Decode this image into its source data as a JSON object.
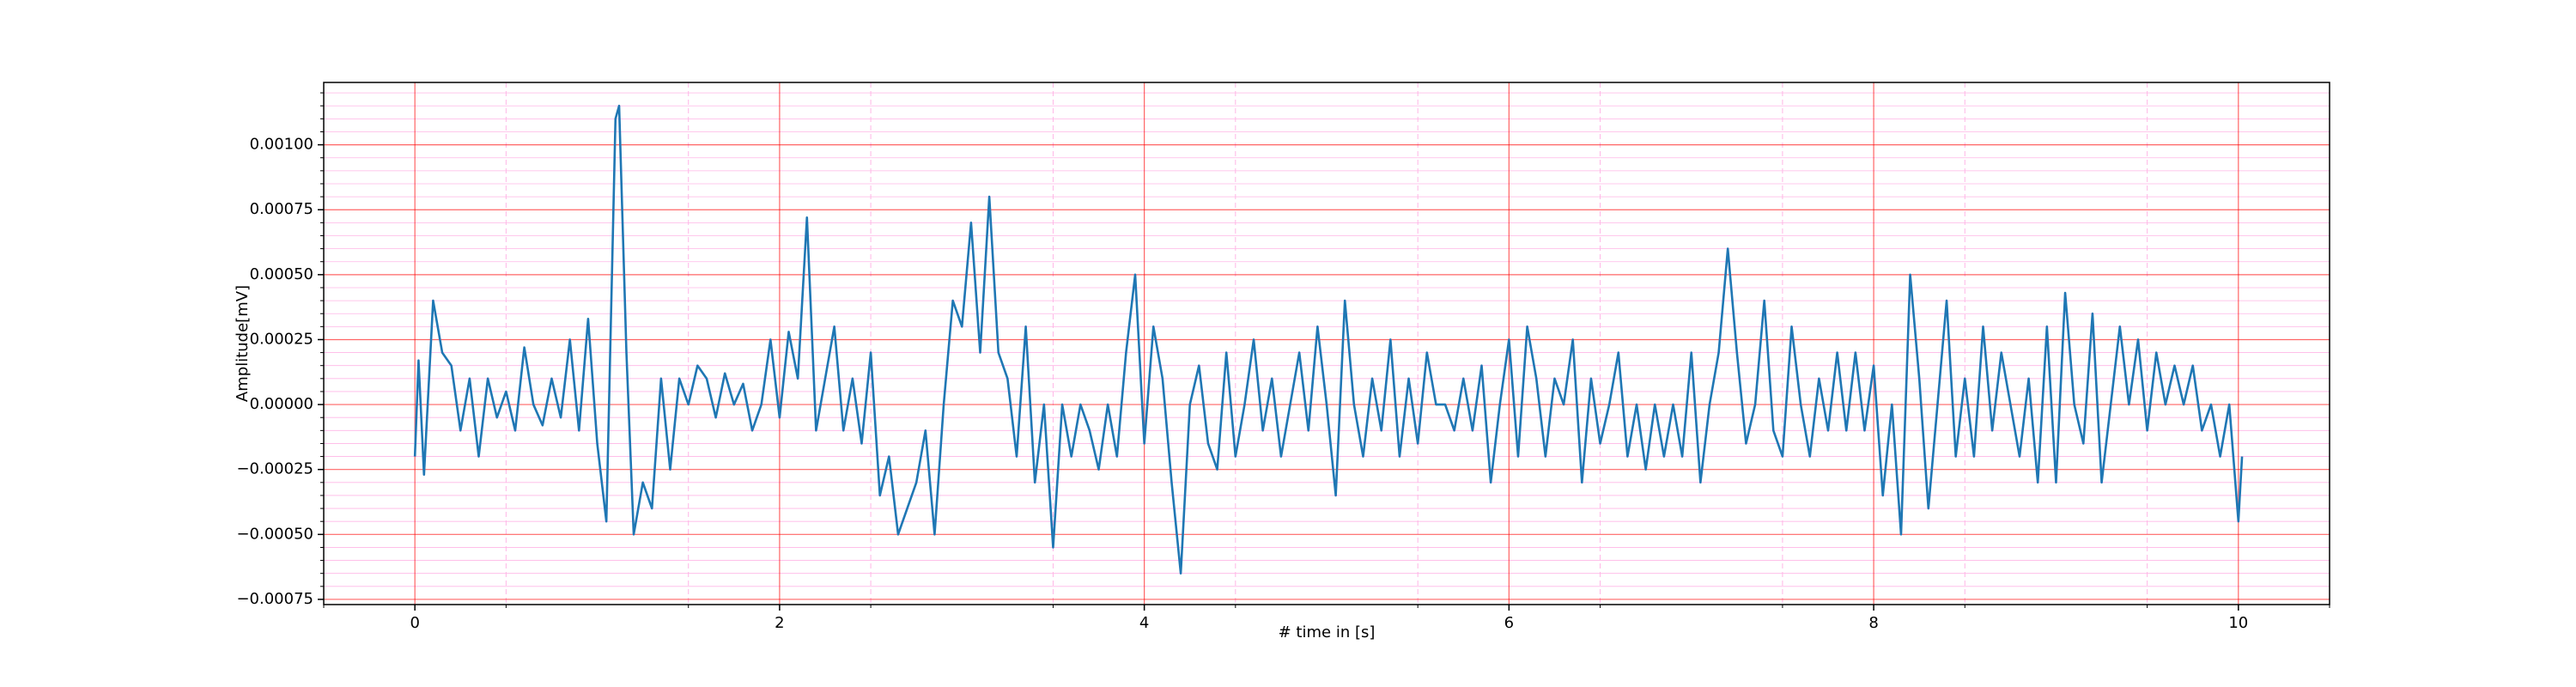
{
  "chart_data": {
    "type": "line",
    "xlabel": "# time in [s]",
    "ylabel": "Amplitude[mV]",
    "color": "#1f77b4",
    "x": [
      0,
      0.02,
      0.05,
      0.1,
      0.15,
      0.2,
      0.25,
      0.3,
      0.35,
      0.4,
      0.45,
      0.5,
      0.55,
      0.6,
      0.65,
      0.7,
      0.75,
      0.8,
      0.85,
      0.9,
      0.95,
      1.0,
      1.05,
      1.1,
      1.12,
      1.16,
      1.2,
      1.25,
      1.3,
      1.35,
      1.4,
      1.45,
      1.5,
      1.55,
      1.6,
      1.65,
      1.7,
      1.75,
      1.8,
      1.85,
      1.9,
      1.95,
      2.0,
      2.05,
      2.1,
      2.15,
      2.2,
      2.25,
      2.3,
      2.35,
      2.4,
      2.45,
      2.5,
      2.55,
      2.6,
      2.65,
      2.7,
      2.75,
      2.8,
      2.85,
      2.9,
      2.95,
      3.0,
      3.05,
      3.1,
      3.15,
      3.2,
      3.25,
      3.3,
      3.35,
      3.4,
      3.45,
      3.5,
      3.55,
      3.6,
      3.65,
      3.7,
      3.75,
      3.8,
      3.85,
      3.9,
      3.95,
      4.0,
      4.05,
      4.1,
      4.15,
      4.2,
      4.25,
      4.3,
      4.35,
      4.4,
      4.45,
      4.5,
      4.55,
      4.6,
      4.65,
      4.7,
      4.75,
      4.8,
      4.85,
      4.9,
      4.95,
      5.0,
      5.05,
      5.1,
      5.15,
      5.2,
      5.25,
      5.3,
      5.35,
      5.4,
      5.45,
      5.5,
      5.55,
      5.6,
      5.65,
      5.7,
      5.75,
      5.8,
      5.85,
      5.9,
      5.95,
      6.0,
      6.05,
      6.1,
      6.15,
      6.2,
      6.25,
      6.3,
      6.35,
      6.4,
      6.45,
      6.5,
      6.55,
      6.6,
      6.65,
      6.7,
      6.75,
      6.8,
      6.85,
      6.9,
      6.95,
      7.0,
      7.05,
      7.1,
      7.15,
      7.2,
      7.25,
      7.3,
      7.35,
      7.4,
      7.45,
      7.5,
      7.55,
      7.6,
      7.65,
      7.7,
      7.75,
      7.8,
      7.85,
      7.9,
      7.95,
      8.0,
      8.05,
      8.1,
      8.15,
      8.2,
      8.25,
      8.3,
      8.35,
      8.4,
      8.45,
      8.5,
      8.55,
      8.6,
      8.65,
      8.7,
      8.75,
      8.8,
      8.85,
      8.9,
      8.95,
      9.0,
      9.05,
      9.1,
      9.15,
      9.2,
      9.25,
      9.3,
      9.35,
      9.4,
      9.45,
      9.5,
      9.55,
      9.6,
      9.65,
      9.7,
      9.75,
      9.8,
      9.85,
      9.9,
      9.95,
      10.0,
      10.02
    ],
    "values": [
      -0.0002,
      0.00017,
      -0.00027,
      0.0004,
      0.0002,
      0.00015,
      -0.0001,
      0.0001,
      -0.0002,
      0.0001,
      -5e-05,
      5e-05,
      -0.0001,
      0.00022,
      0.0,
      -8e-05,
      0.0001,
      -5e-05,
      0.00025,
      -0.0001,
      0.00033,
      -0.00015,
      -0.00045,
      0.0011,
      0.00115,
      0.0002,
      -0.0005,
      -0.0003,
      -0.0004,
      0.0001,
      -0.00025,
      0.0001,
      0.0,
      0.00015,
      0.0001,
      -5e-05,
      0.00012,
      0.0,
      8e-05,
      -0.0001,
      0.0,
      0.00025,
      -5e-05,
      0.00028,
      0.0001,
      0.00072,
      -0.0001,
      0.0001,
      0.0003,
      -0.0001,
      0.0001,
      -0.00015,
      0.0002,
      -0.00035,
      -0.0002,
      -0.0005,
      -0.0004,
      -0.0003,
      -0.0001,
      -0.0005,
      0.0,
      0.0004,
      0.0003,
      0.0007,
      0.0002,
      0.0008,
      0.0002,
      0.0001,
      -0.0002,
      0.0003,
      -0.0003,
      0.0,
      -0.00055,
      0.0,
      -0.0002,
      0.0,
      -0.0001,
      -0.00025,
      0.0,
      -0.0002,
      0.0002,
      0.0005,
      -0.00015,
      0.0003,
      0.0001,
      -0.0003,
      -0.00065,
      0.0,
      0.00015,
      -0.00015,
      -0.00025,
      0.0002,
      -0.0002,
      0.0,
      0.00025,
      -0.0001,
      0.0001,
      -0.0002,
      0.0,
      0.0002,
      -0.0001,
      0.0003,
      0.0,
      -0.00035,
      0.0004,
      0.0,
      -0.0002,
      0.0001,
      -0.0001,
      0.00025,
      -0.0002,
      0.0001,
      -0.00015,
      0.0002,
      0.0,
      0.0,
      -0.0001,
      0.0001,
      -0.0001,
      0.00015,
      -0.0003,
      0.0,
      0.00025,
      -0.0002,
      0.0003,
      0.0001,
      -0.0002,
      0.0001,
      0.0,
      0.00025,
      -0.0003,
      0.0001,
      -0.00015,
      0.0,
      0.0002,
      -0.0002,
      0.0,
      -0.00025,
      0.0,
      -0.0002,
      0.0,
      -0.0002,
      0.0002,
      -0.0003,
      0.0,
      0.0002,
      0.0006,
      0.0002,
      -0.00015,
      0.0,
      0.0004,
      -0.0001,
      -0.0002,
      0.0003,
      0.0,
      -0.0002,
      0.0001,
      -0.0001,
      0.0002,
      -0.0001,
      0.0002,
      -0.0001,
      0.00015,
      -0.00035,
      0.0,
      -0.0005,
      0.0005,
      0.0001,
      -0.0004,
      0.0,
      0.0004,
      -0.0002,
      0.0001,
      -0.0002,
      0.0003,
      -0.0001,
      0.0002,
      0.0,
      -0.0002,
      0.0001,
      -0.0003,
      0.0003,
      -0.0003,
      0.00043,
      0.0,
      -0.00015,
      0.00035,
      -0.0003,
      0.0,
      0.0003,
      0.0,
      0.00025,
      -0.0001,
      0.0002,
      0.0,
      0.00015,
      0.0,
      0.00015,
      -0.0001,
      0.0,
      -0.0002,
      0.0,
      -0.00045,
      -0.0002
    ],
    "xlim": [
      -0.5,
      10.5
    ],
    "ylim": [
      -0.00077,
      0.00124
    ],
    "xticks": [
      0,
      2,
      4,
      6,
      8,
      10
    ],
    "yticks": [
      {
        "value": -0.00075,
        "label": "−0.00075"
      },
      {
        "value": -0.0005,
        "label": "−0.00050"
      },
      {
        "value": -0.00025,
        "label": "−0.00025"
      },
      {
        "value": 0,
        "label": "0.00000"
      },
      {
        "value": 0.00025,
        "label": "0.00025"
      },
      {
        "value": 0.0005,
        "label": "0.00050"
      },
      {
        "value": 0.00075,
        "label": "0.00075"
      },
      {
        "value": 0.001,
        "label": "0.00100"
      }
    ],
    "minor_xticks": [
      -0.5,
      0.5,
      1.5,
      2.5,
      3.5,
      4.5,
      5.5,
      6.5,
      7.5,
      8.5,
      9.5,
      10.5
    ],
    "minor_yticks": [
      -0.0007,
      -0.00065,
      -0.0006,
      -0.00055,
      -0.00045,
      -0.0004,
      -0.00035,
      -0.0003,
      -0.0002,
      -0.00015,
      -0.0001,
      -5e-05,
      5e-05,
      0.0001,
      0.00015,
      0.0002,
      0.0003,
      0.00035,
      0.0004,
      0.00045,
      0.00055,
      0.0006,
      0.00065,
      0.0007,
      0.0008,
      0.00085,
      0.0009,
      0.00095,
      0.00105,
      0.0011,
      0.00115,
      0.0012
    ],
    "grid": true,
    "grid_color": "#ff0000",
    "minor_grid_color": "#ffb6e6"
  }
}
